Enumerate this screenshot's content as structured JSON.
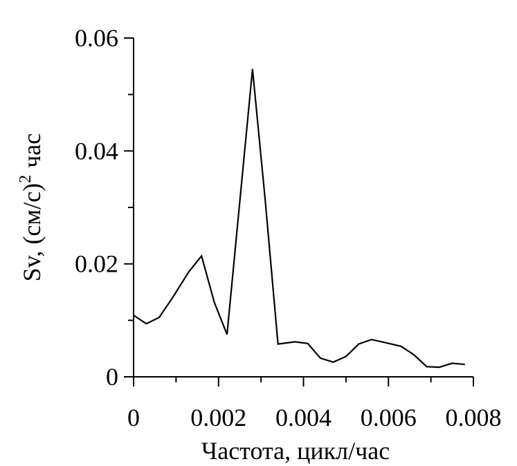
{
  "chart_data": {
    "type": "line",
    "x_label": "Частота, цикл/час",
    "y_label": {
      "text": "Sv, (см/с)",
      "superscript": "2",
      "suffix": "час"
    },
    "x": [
      0,
      0.0003,
      0.0006,
      0.0009,
      0.0013,
      0.0016,
      0.0019,
      0.0022,
      0.0028,
      0.0031,
      0.0034,
      0.0038,
      0.0041,
      0.0044,
      0.0047,
      0.005,
      0.0053,
      0.0056,
      0.0059,
      0.0063,
      0.0066,
      0.0069,
      0.0072,
      0.0075,
      0.0078
    ],
    "series": [
      {
        "color": "#000000",
        "values": [
          0.0109,
          0.0094,
          0.0105,
          0.0138,
          0.0186,
          0.0214,
          0.0132,
          0.0075,
          0.0545,
          0.0312,
          0.0058,
          0.0062,
          0.0059,
          0.0033,
          0.0026,
          0.0036,
          0.0058,
          0.0066,
          0.0061,
          0.0054,
          0.0039,
          0.0018,
          0.0017,
          0.0024,
          0.0022
        ]
      }
    ],
    "xlim": [
      0,
      0.008
    ],
    "ylim": [
      0,
      0.06
    ],
    "xticks": [
      0,
      0.002,
      0.004,
      0.006,
      0.008
    ],
    "yticks": [
      0,
      0.02,
      0.04,
      0.06
    ],
    "xminor_ticks": [
      0.001,
      0.003,
      0.005,
      0.007
    ],
    "yminor_ticks": [
      0.01,
      0.03,
      0.05
    ],
    "grid": false
  }
}
